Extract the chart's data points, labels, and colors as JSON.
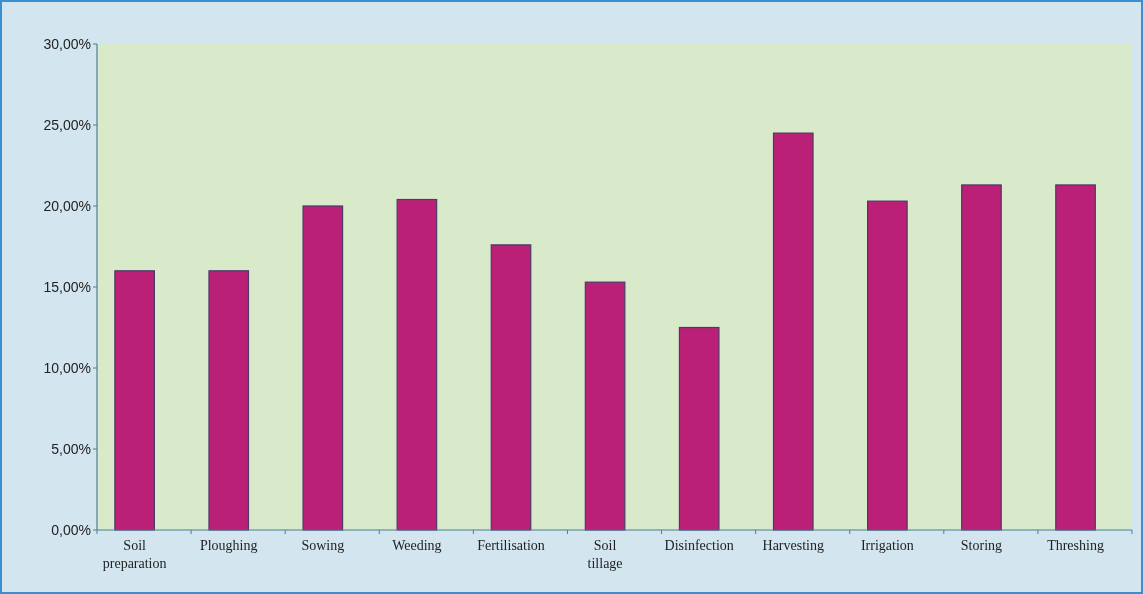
{
  "chart_data": {
    "type": "bar",
    "categories": [
      "Soil preparation",
      "Ploughing",
      "Sowing",
      "Weeding",
      "Fertilisation",
      "Soil tillage",
      "Disinfection",
      "Harvesting",
      "Irrigation",
      "Storing",
      "Threshing"
    ],
    "values": [
      16.0,
      16.0,
      20.0,
      20.4,
      17.6,
      15.3,
      12.5,
      24.5,
      20.3,
      21.3,
      21.3
    ],
    "color": "#bb2077",
    "ylim": [
      0,
      30
    ],
    "yticks": [
      {
        "value": 0,
        "label": "0,00%"
      },
      {
        "value": 5,
        "label": "5,00%"
      },
      {
        "value": 10,
        "label": "10,00%"
      },
      {
        "value": 15,
        "label": "15,00%"
      },
      {
        "value": 20,
        "label": "20,00%"
      },
      {
        "value": 25,
        "label": "25,00%"
      },
      {
        "value": 30,
        "label": "30,00%"
      }
    ],
    "grid": false
  }
}
